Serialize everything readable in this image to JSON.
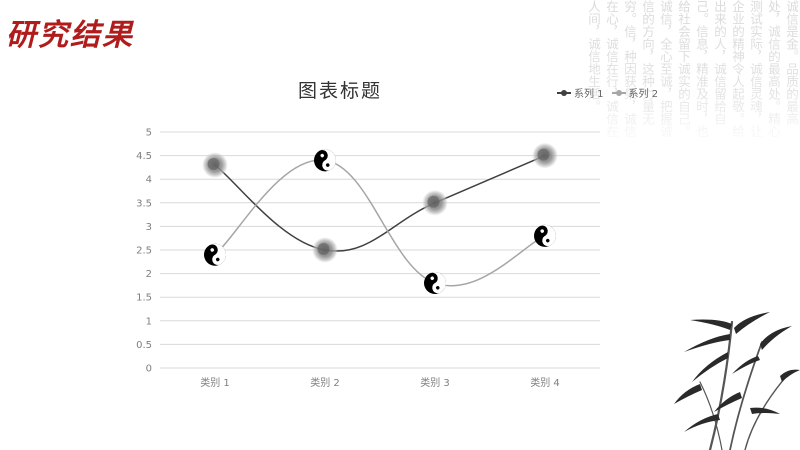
{
  "slide": {
    "title": "研究结果",
    "background_text": "诚信是金。品质的最高处，诚信的最高处。精心测试实际，诚信灵魂，让企业的精神令人起敬。给出来的人，诚信留给自己。信息，精准及时，也给社会留下诚实的自己。诚信，全心至诚，把握诚信的方向，这种力量无穷。信，种因获果，诚信在心，诚信在行，诚信在人间，诚信地生活。"
  },
  "colors": {
    "title_red": "#b01c1c",
    "series1": "#404040",
    "series2": "#a6a6a6",
    "grid": "#d9d9d9",
    "axis_text": "#7f7f7f"
  },
  "chart_data": {
    "type": "line",
    "title": "图表标题",
    "categories": [
      "类别 1",
      "类别 2",
      "类别 3",
      "类别 4"
    ],
    "series": [
      {
        "name": "系列 1",
        "values": [
          4.3,
          2.5,
          3.5,
          4.5
        ],
        "marker": "ink-blot"
      },
      {
        "name": "系列 2",
        "values": [
          2.4,
          4.4,
          1.8,
          2.8
        ],
        "marker": "yin-yang"
      }
    ],
    "y_ticks": [
      "0",
      "0.5",
      "1",
      "1.5",
      "2",
      "2.5",
      "3",
      "3.5",
      "4",
      "4.5",
      "5"
    ],
    "ylim": [
      0,
      5
    ],
    "grid": true,
    "smooth": true,
    "legend_position": "top-right"
  }
}
